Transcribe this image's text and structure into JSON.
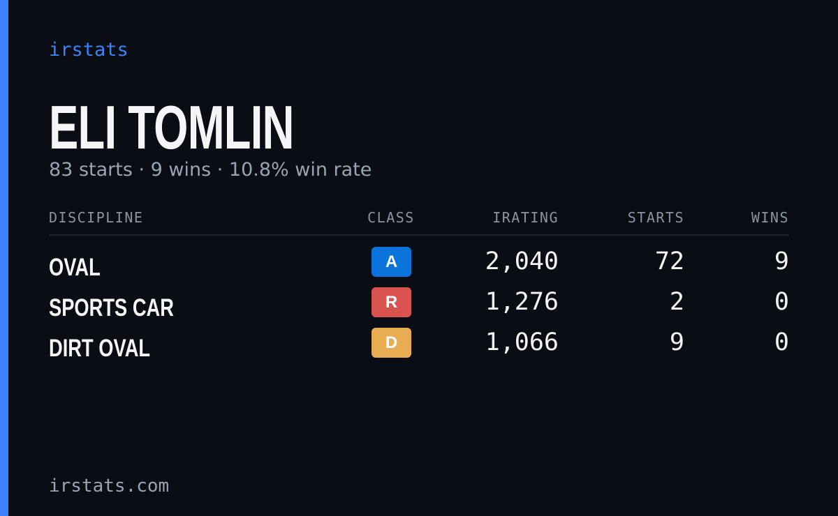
{
  "brand": "irstats",
  "driver": {
    "name": "ELI TOMLIN",
    "summary": "83 starts · 9 wins · 10.8% win rate"
  },
  "table": {
    "headers": [
      "DISCIPLINE",
      "CLASS",
      "IRATING",
      "STARTS",
      "WINS"
    ],
    "rows": [
      {
        "discipline": "OVAL",
        "class": "A",
        "class_color": "#0a74da",
        "irating": "2,040",
        "starts": "72",
        "wins": "9"
      },
      {
        "discipline": "SPORTS CAR",
        "class": "R",
        "class_color": "#d9534f",
        "irating": "1,276",
        "starts": "2",
        "wins": "0"
      },
      {
        "discipline": "DIRT OVAL",
        "class": "D",
        "class_color": "#e8ad52",
        "irating": "1,066",
        "starts": "9",
        "wins": "0"
      }
    ]
  },
  "footer": "irstats.com"
}
